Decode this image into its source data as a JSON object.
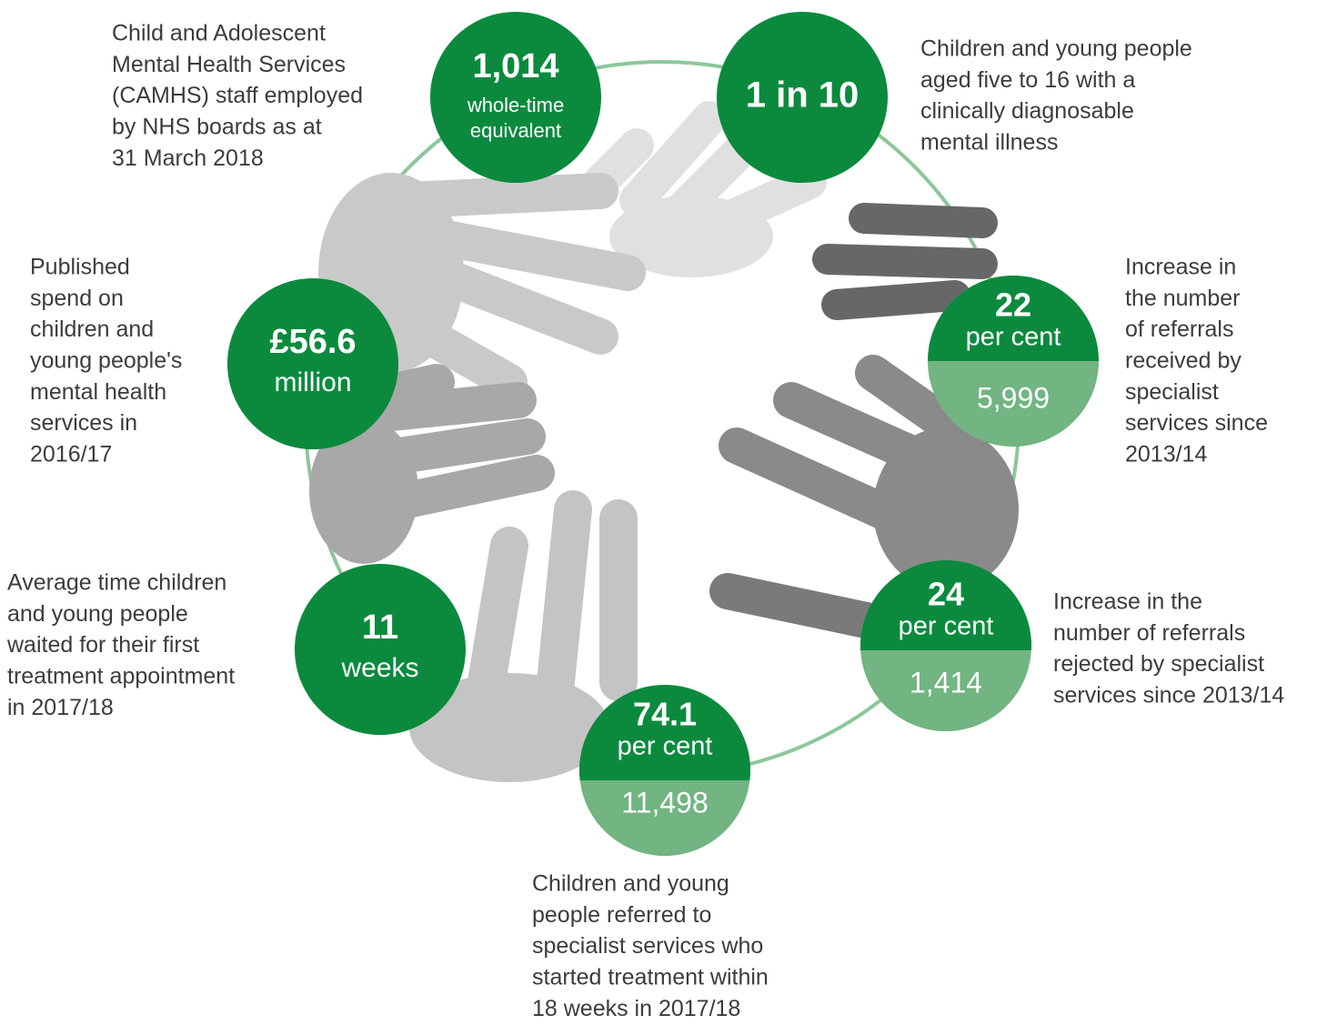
{
  "stats": [
    {
      "value": "1,014",
      "unit": [
        "whole-time",
        "equivalent"
      ],
      "description": [
        "Child and Adolescent",
        "Mental Health Services",
        "(CAMHS) staff employed",
        "by NHS boards as at",
        "31 March 2018"
      ]
    },
    {
      "value": "1 in 10",
      "description": [
        "Children and young people",
        "aged five to 16 with a",
        "clinically diagnosable",
        "mental illness"
      ]
    },
    {
      "value": "22",
      "unit": [
        "per cent"
      ],
      "sub": "5,999",
      "description": [
        "Increase in",
        "the number",
        "of referrals",
        "received by",
        "specialist",
        "services since",
        "2013/14"
      ]
    },
    {
      "value": "24",
      "unit": [
        "per cent"
      ],
      "sub": "1,414",
      "description": [
        "Increase in the",
        "number of referrals",
        "rejected by specialist",
        "services since 2013/14"
      ]
    },
    {
      "value": "74.1",
      "unit": [
        "per cent"
      ],
      "sub": "11,498",
      "description": [
        "Children and young",
        "people referred to",
        "specialist services who",
        "started treatment within",
        "18 weeks in 2017/18"
      ]
    },
    {
      "value": "11",
      "unit": [
        "weeks"
      ],
      "description": [
        "Average time children",
        "and young people",
        "waited for their first",
        "treatment appointment",
        "in 2017/18"
      ]
    },
    {
      "value": "£56.6",
      "unit": [
        "million"
      ],
      "description": [
        "Published",
        "spend on",
        "children and",
        "young people's",
        "mental health",
        "services in",
        "2016/17"
      ]
    }
  ]
}
